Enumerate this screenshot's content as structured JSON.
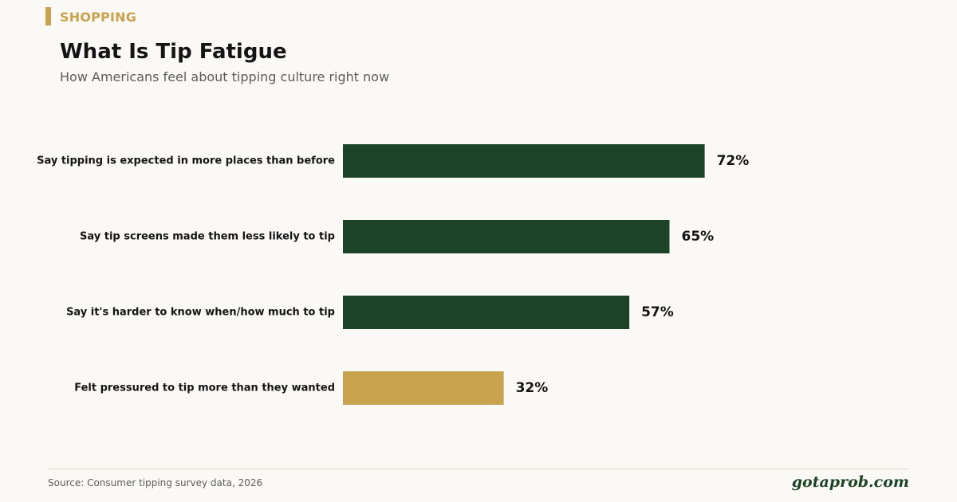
{
  "header": {
    "kicker": "SHOPPING",
    "title": "What Is Tip Fatigue",
    "subtitle": "How Americans feel about tipping culture right now"
  },
  "footer": {
    "source": "Source: Consumer tipping survey data, 2026",
    "brand": "gotaprob.com"
  },
  "colors": {
    "primary": "#1d4326",
    "highlight": "#c9a24d"
  },
  "chart_data": {
    "type": "bar",
    "orientation": "horizontal",
    "title": "What Is Tip Fatigue",
    "subtitle": "How Americans feel about tipping culture right now",
    "categories": [
      "Say tipping is expected in more places than before",
      "Say tip screens made them less likely to tip",
      "Say it's harder to know when/how much to tip",
      "Felt pressured to tip more than they wanted"
    ],
    "values": [
      72,
      65,
      57,
      32
    ],
    "value_labels": [
      "72%",
      "65%",
      "57%",
      "32%"
    ],
    "highlight": [
      false,
      false,
      false,
      true
    ],
    "unit": "%",
    "xlim": [
      0,
      100
    ],
    "grid": false,
    "legend": "none"
  }
}
